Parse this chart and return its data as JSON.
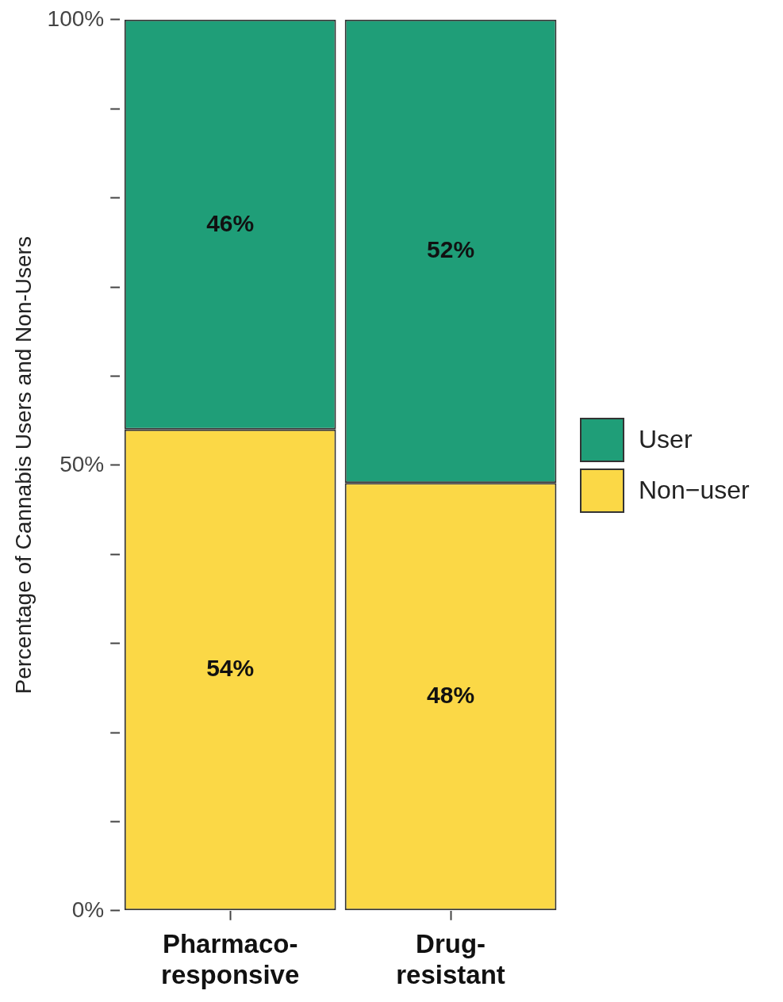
{
  "chart_data": {
    "type": "bar",
    "stacked": true,
    "ylabel": "Percentage of Cannabis Users and Non-Users",
    "categories": [
      "Pharmaco-responsive",
      "Drug-resistant"
    ],
    "series": [
      {
        "name": "Non−user",
        "color": "#fbd846",
        "values": [
          54,
          48
        ],
        "value_labels": [
          "54%",
          "48%"
        ]
      },
      {
        "name": "User",
        "color": "#1f9e78",
        "values": [
          46,
          52
        ],
        "value_labels": [
          "46%",
          "52%"
        ]
      }
    ],
    "ylim": [
      0,
      100
    ],
    "yticks": [
      {
        "value": 0,
        "label": "0%"
      },
      {
        "value": 10,
        "label": null
      },
      {
        "value": 20,
        "label": null
      },
      {
        "value": 30,
        "label": null
      },
      {
        "value": 40,
        "label": null
      },
      {
        "value": 50,
        "label": "50%"
      },
      {
        "value": 60,
        "label": null
      },
      {
        "value": 70,
        "label": null
      },
      {
        "value": 80,
        "label": null
      },
      {
        "value": 90,
        "label": null
      },
      {
        "value": 100,
        "label": "100%"
      }
    ],
    "grid": false,
    "legend": "right"
  }
}
